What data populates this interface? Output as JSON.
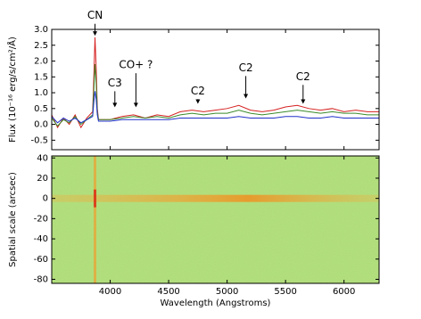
{
  "chart_data": [
    {
      "type": "line",
      "y_label": "Flux (10⁻¹⁶ erg/s/cm²/Å)",
      "xlim": [
        3500,
        6300
      ],
      "ylim": [
        -0.8,
        3.0
      ],
      "yticks": [
        {
          "value": 3,
          "label": "3.0"
        },
        {
          "value": 2.5,
          "label": "2.5"
        },
        {
          "value": 2,
          "label": "2.0"
        },
        {
          "value": 1.5,
          "label": "1.5"
        },
        {
          "value": 1,
          "label": "1.0"
        },
        {
          "value": 0.5,
          "label": "0.5"
        },
        {
          "value": 0,
          "label": "0.0"
        },
        {
          "value": -0.5,
          "label": "-0.5"
        }
      ],
      "x": [
        3500,
        3550,
        3600,
        3650,
        3700,
        3750,
        3800,
        3850,
        3860,
        3870,
        3880,
        3890,
        3900,
        4000,
        4100,
        4200,
        4300,
        4400,
        4500,
        4600,
        4700,
        4800,
        4900,
        5000,
        5100,
        5200,
        5300,
        5400,
        5500,
        5600,
        5700,
        5800,
        5900,
        6000,
        6100,
        6200,
        6300
      ],
      "series": [
        {
          "color": "#d62020",
          "values": [
            0.3,
            -0.1,
            0.2,
            0.0,
            0.3,
            -0.1,
            0.2,
            0.4,
            1.5,
            2.75,
            1.8,
            0.5,
            0.15,
            0.15,
            0.25,
            0.3,
            0.2,
            0.3,
            0.25,
            0.4,
            0.45,
            0.4,
            0.45,
            0.5,
            0.6,
            0.45,
            0.4,
            0.45,
            0.55,
            0.6,
            0.5,
            0.45,
            0.5,
            0.4,
            0.45,
            0.4,
            0.4
          ]
        },
        {
          "color": "#3a8a2a",
          "values": [
            0.2,
            -0.05,
            0.15,
            0.05,
            0.25,
            0.0,
            0.15,
            0.3,
            1.1,
            1.9,
            1.3,
            0.4,
            0.15,
            0.15,
            0.2,
            0.25,
            0.2,
            0.25,
            0.2,
            0.3,
            0.35,
            0.3,
            0.35,
            0.35,
            0.45,
            0.35,
            0.3,
            0.35,
            0.4,
            0.45,
            0.4,
            0.35,
            0.4,
            0.35,
            0.35,
            0.3,
            0.3
          ]
        },
        {
          "color": "#2030c8",
          "values": [
            0.25,
            0.05,
            0.2,
            0.1,
            0.2,
            0.05,
            0.15,
            0.25,
            0.7,
            1.05,
            0.8,
            0.3,
            0.1,
            0.1,
            0.15,
            0.15,
            0.15,
            0.15,
            0.15,
            0.2,
            0.2,
            0.2,
            0.2,
            0.2,
            0.25,
            0.2,
            0.2,
            0.2,
            0.25,
            0.25,
            0.2,
            0.2,
            0.25,
            0.2,
            0.2,
            0.2,
            0.2
          ]
        }
      ],
      "annotations": [
        {
          "text": "CN",
          "x": 3870,
          "y": 2.8,
          "text_y": 3.43
        },
        {
          "text": "C3",
          "x": 4040,
          "y": 0.54,
          "text_y": 1.3
        },
        {
          "text": "CO+ ?",
          "x": 4220,
          "y": 0.54,
          "text_y": 1.87
        },
        {
          "text": "C2",
          "x": 4750,
          "y": 0.65,
          "text_y": 1.05
        },
        {
          "text": "C2",
          "x": 5160,
          "y": 0.82,
          "text_y": 1.78
        },
        {
          "text": "C2",
          "x": 5650,
          "y": 0.65,
          "text_y": 1.5
        }
      ]
    },
    {
      "type": "image",
      "x_label": "Wavelength (Angstroms)",
      "y_label": "Spatial scale (arcsec)",
      "xlim": [
        3500,
        6300
      ],
      "ylim": [
        -84,
        42
      ],
      "xticks": [
        4000,
        4500,
        5000,
        5500,
        6000
      ],
      "yticks": [
        40,
        20,
        0,
        -20,
        -40,
        -60,
        -80
      ]
    }
  ]
}
